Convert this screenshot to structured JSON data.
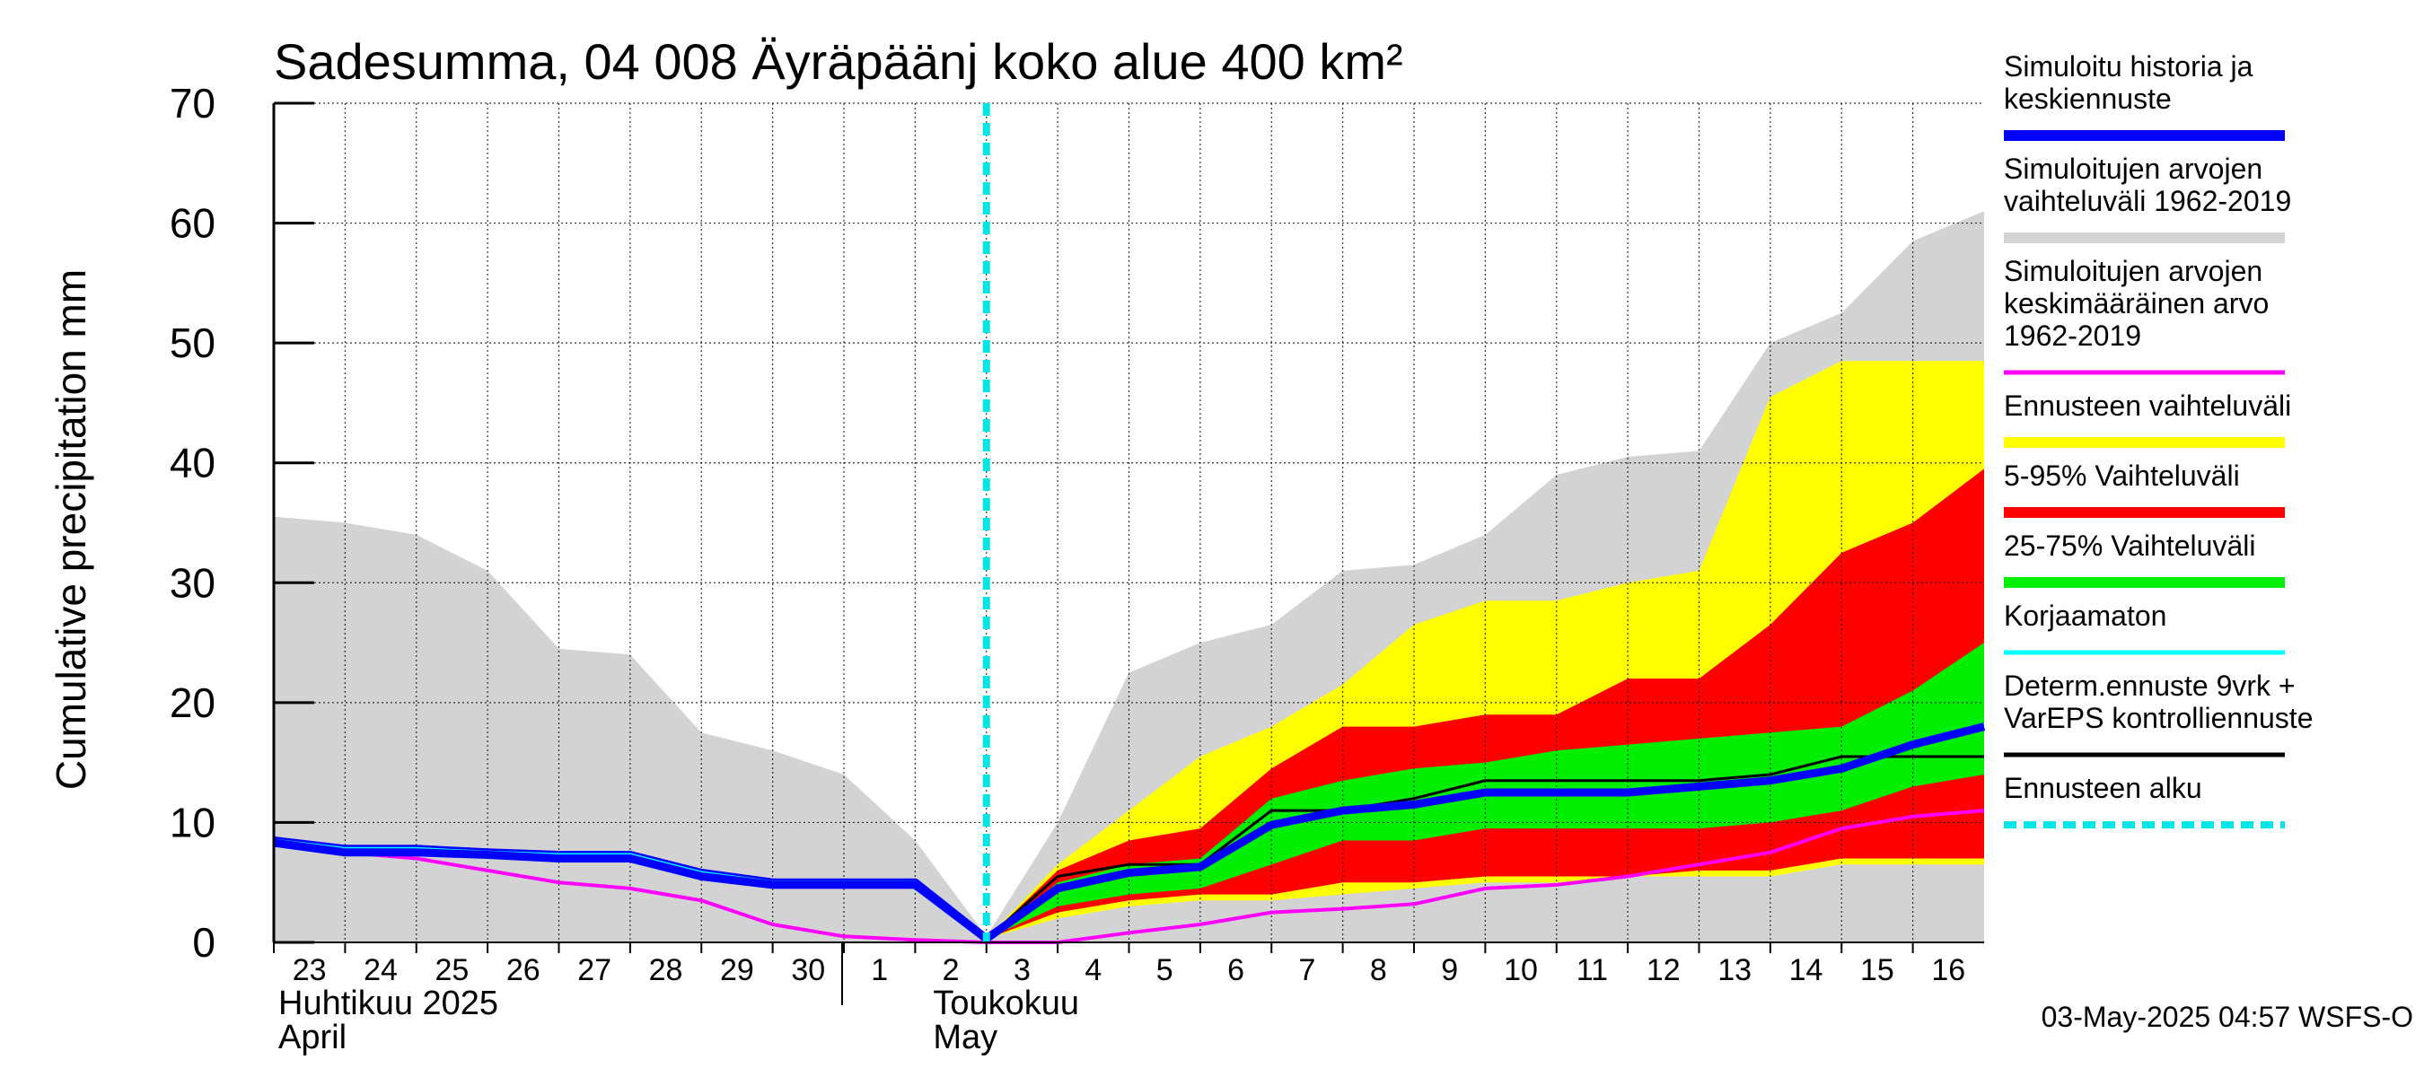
{
  "chart_data": {
    "type": "area",
    "title": "Sadesumma, 04 008 Äyräpäänj koko alue 400 km²",
    "ylabel": "Cumulative precipitation   mm",
    "xlabel": "",
    "ylim": [
      0,
      70
    ],
    "yticks": [
      0,
      10,
      20,
      30,
      40,
      50,
      60,
      70
    ],
    "grid": true,
    "legend_position": "right",
    "x_dates": [
      "2025-04-23",
      "2025-04-24",
      "2025-04-25",
      "2025-04-26",
      "2025-04-27",
      "2025-04-28",
      "2025-04-29",
      "2025-04-30",
      "2025-05-01",
      "2025-05-02",
      "2025-05-03",
      "2025-05-04",
      "2025-05-05",
      "2025-05-06",
      "2025-05-07",
      "2025-05-08",
      "2025-05-09",
      "2025-05-10",
      "2025-05-11",
      "2025-05-12",
      "2025-05-13",
      "2025-05-14",
      "2025-05-15",
      "2025-05-16",
      "2025-05-17"
    ],
    "x_tick_labels": [
      "23",
      "24",
      "25",
      "26",
      "27",
      "28",
      "29",
      "30",
      "1",
      "2",
      "3",
      "4",
      "5",
      "6",
      "7",
      "8",
      "9",
      "10",
      "11",
      "12",
      "13",
      "14",
      "15",
      "16"
    ],
    "month_labels": [
      {
        "fi": "Huhtikuu  2025",
        "en": "April"
      },
      {
        "fi": "Toukokuu",
        "en": "May"
      }
    ],
    "forecast_start": "2025-05-03",
    "bands": [
      {
        "name": "Simuloitujen arvojen vaihteluväli 1962-2019",
        "color": "#d3d3d3",
        "lower": [
          0,
          0,
          0,
          0,
          0,
          0,
          0,
          0,
          0,
          0,
          0,
          0,
          0,
          0,
          0,
          0,
          0,
          0,
          0,
          0,
          0,
          0,
          0,
          0,
          0
        ],
        "upper": [
          35.5,
          35,
          34,
          31,
          24.5,
          24,
          17.5,
          16,
          14,
          8.5,
          0.5,
          10,
          22.5,
          25,
          26.5,
          31,
          31.5,
          34,
          39,
          40.5,
          41,
          50,
          52.5,
          58.5,
          61
        ]
      },
      {
        "name": "Ennusteen vaihteluväli",
        "color": "#ffff00",
        "lower": [
          null,
          null,
          null,
          null,
          null,
          null,
          null,
          null,
          null,
          null,
          0.3,
          2,
          3,
          3.5,
          3.5,
          4,
          4.5,
          5,
          5,
          5.5,
          5.5,
          5.5,
          6.5,
          6.5,
          6.5
        ],
        "upper": [
          null,
          null,
          null,
          null,
          null,
          null,
          null,
          null,
          null,
          null,
          0.3,
          6.5,
          11,
          15.5,
          18,
          21.5,
          26.5,
          28.5,
          28.5,
          30,
          31,
          45.5,
          48.5,
          48.5,
          48.5
        ]
      },
      {
        "name": "5-95% Vaihteluväli",
        "color": "#ff0000",
        "lower": [
          null,
          null,
          null,
          null,
          null,
          null,
          null,
          null,
          null,
          null,
          0.3,
          2.5,
          3.5,
          4,
          4,
          5,
          5,
          5.5,
          5.5,
          5.5,
          6,
          6,
          7,
          7,
          7
        ],
        "upper": [
          null,
          null,
          null,
          null,
          null,
          null,
          null,
          null,
          null,
          null,
          0.3,
          6,
          8.5,
          9.5,
          14.5,
          18,
          18,
          19,
          19,
          22,
          22,
          26.5,
          32.5,
          35,
          39.5
        ]
      },
      {
        "name": "25-75% Vaihteluväli",
        "color": "#00ee00",
        "lower": [
          null,
          null,
          null,
          null,
          null,
          null,
          null,
          null,
          null,
          null,
          0.3,
          3,
          4,
          4.5,
          6.5,
          8.5,
          8.5,
          9.5,
          9.5,
          9.5,
          9.5,
          10,
          11,
          13,
          14
        ],
        "upper": [
          null,
          null,
          null,
          null,
          null,
          null,
          null,
          null,
          null,
          null,
          0.3,
          5,
          6.5,
          7,
          12,
          13.5,
          14.5,
          15,
          16,
          16.5,
          17,
          17.5,
          18,
          21,
          25
        ]
      }
    ],
    "series": [
      {
        "name": "Simuloitujen arvojen keskimääräinen arvo 1962-2019",
        "color": "#ff00ff",
        "values": [
          8.5,
          7.5,
          7,
          6,
          5,
          4.5,
          3.5,
          1.5,
          0.5,
          0.2,
          0,
          0,
          0.8,
          1.5,
          2.5,
          2.8,
          3.2,
          4.5,
          4.8,
          5.5,
          6.5,
          7.5,
          9.5,
          10.5,
          11
        ]
      },
      {
        "name": "Korjaamaton",
        "color": "#00ffff",
        "values": [
          8.5,
          7.8,
          7.8,
          7.5,
          7.3,
          7.3,
          5.8,
          5,
          5,
          5,
          0.3,
          null,
          null,
          null,
          null,
          null,
          null,
          null,
          null,
          null,
          null,
          null,
          null,
          null,
          null
        ]
      },
      {
        "name": "Determ.ennuste 9vrk + VarEPS kontrolliennuste",
        "color": "#000000",
        "values": [
          null,
          null,
          null,
          null,
          null,
          null,
          null,
          null,
          null,
          null,
          0.3,
          5.5,
          6.5,
          6.5,
          11,
          11,
          12,
          13.5,
          13.5,
          13.5,
          13.5,
          14,
          15.5,
          15.5,
          15.5
        ]
      },
      {
        "name": "Simuloitu historia ja keskiennuste",
        "color": "#0000ff",
        "values": [
          8.3,
          7.5,
          7.5,
          7.3,
          7,
          7,
          5.5,
          4.8,
          4.8,
          4.8,
          0.3,
          4.5,
          5.8,
          6.3,
          9.8,
          11,
          11.5,
          12.5,
          12.5,
          12.5,
          13,
          13.5,
          14.5,
          16.5,
          18
        ]
      }
    ],
    "legend": [
      {
        "label": "Simuloitu historia ja\nkeskiennuste",
        "color": "#0000ff",
        "style": "thick"
      },
      {
        "label": "Simuloitujen arvojen\nvaihteluväli 1962-2019",
        "color": "#d3d3d3",
        "style": "thick"
      },
      {
        "label": "Simuloitujen arvojen\nkeskimääräinen arvo\n   1962-2019",
        "color": "#ff00ff",
        "style": "line"
      },
      {
        "label": "Ennusteen vaihteluväli",
        "color": "#ffff00",
        "style": "thick"
      },
      {
        "label": "5-95% Vaihteluväli",
        "color": "#ff0000",
        "style": "thick"
      },
      {
        "label": "25-75% Vaihteluväli",
        "color": "#00ee00",
        "style": "thick"
      },
      {
        "label": "Korjaamaton",
        "color": "#00ffff",
        "style": "line"
      },
      {
        "label": "Determ.ennuste 9vrk +\nVarEPS kontrolliennuste",
        "color": "#000000",
        "style": "line"
      },
      {
        "label": "Ennusteen alku",
        "color": "#00e5e5",
        "style": "dashed"
      }
    ],
    "timestamp": "03-May-2025 04:57 WSFS-O"
  }
}
